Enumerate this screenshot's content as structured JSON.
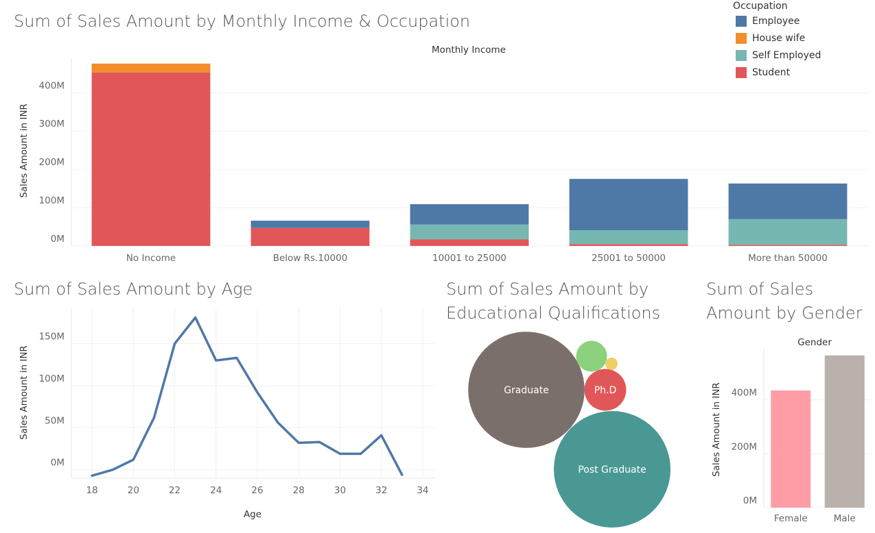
{
  "income_chart": {
    "title": "Sum of Sales Amount by Monthly Income & Occupation",
    "chart_data": {
      "type": "bar",
      "stacked": true,
      "title": "Sum of Sales Amount by Monthly Income & Occupation",
      "column_header": "Monthly Income",
      "ylabel": "Sales Amount in INR",
      "ylim": [
        0,
        490
      ],
      "yticks": [
        "0M",
        "100M",
        "200M",
        "300M",
        "400M"
      ],
      "ytick_values": [
        0,
        100,
        200,
        300,
        400
      ],
      "categories": [
        "No Income",
        "Below Rs.10000",
        "10001 to 25000",
        "25001 to 50000",
        "More than 50000"
      ],
      "series": [
        {
          "name": "Student",
          "color": "#e15759",
          "values": [
            453,
            47,
            17,
            5,
            3
          ]
        },
        {
          "name": "Self Employed",
          "color": "#76b7b2",
          "values": [
            0,
            0,
            39,
            36,
            67
          ]
        },
        {
          "name": "House wife",
          "color": "#f28e2b",
          "values": [
            23,
            0,
            0,
            0,
            0
          ]
        },
        {
          "name": "Employee",
          "color": "#4e79a7",
          "values": [
            0,
            19,
            53,
            134,
            93
          ]
        }
      ],
      "grid": true
    }
  },
  "legend": {
    "title": "Occupation",
    "items": [
      {
        "label": "Employee",
        "color": "#4e79a7"
      },
      {
        "label": "House wife",
        "color": "#f28e2b"
      },
      {
        "label": "Self Employed",
        "color": "#76b7b2"
      },
      {
        "label": "Student",
        "color": "#e15759"
      }
    ]
  },
  "age_chart": {
    "title": "Sum of Sales Amount by Age",
    "chart_data": {
      "type": "line",
      "title": "Sum of Sales Amount by Age",
      "xlabel": "Age",
      "ylabel": "Sales Amount in INR",
      "xlim": [
        17,
        34.6
      ],
      "ylim": [
        -10,
        192
      ],
      "xticks": [
        18,
        20,
        22,
        24,
        26,
        28,
        30,
        32,
        34
      ],
      "yticks": [
        "0M",
        "50M",
        "100M",
        "150M"
      ],
      "ytick_values": [
        0,
        50,
        100,
        150
      ],
      "color": "#4e79a7",
      "x": [
        18,
        19,
        20,
        21,
        22,
        23,
        24,
        25,
        26,
        27,
        28,
        29,
        30,
        31,
        32,
        33
      ],
      "y": [
        -7,
        0,
        12,
        62,
        150,
        181,
        130,
        133,
        92,
        56,
        32,
        33,
        19,
        19,
        41,
        -6
      ],
      "grid": true
    }
  },
  "education_chart": {
    "title": "Sum of Sales Amount by Educational Qualifications",
    "title_lines": [
      "Sum of Sales Amount by",
      "Educational Qualifications"
    ],
    "chart_data": {
      "type": "bubble",
      "title": "Sum of Sales Amount by Educational Qualifications",
      "categories": [
        "Graduate",
        "Post Graduate",
        "Ph.D",
        "",
        ""
      ],
      "colors": [
        "#7b6f6b",
        "#499894",
        "#e15759",
        "#8cd17d",
        "#f1ce63"
      ],
      "relative_size": [
        7183,
        7225,
        930,
        506,
        81
      ]
    }
  },
  "gender_chart": {
    "title": "Sum of Sales Amount by Gender",
    "title_lines": [
      "Sum of Sales",
      "Amount by Gender"
    ],
    "chart_data": {
      "type": "bar",
      "title": "Sum of Sales Amount by Gender",
      "column_header": "Gender",
      "ylabel": "Sales Amount in INR",
      "ylim": [
        0,
        590
      ],
      "yticks": [
        "0M",
        "200M",
        "400M"
      ],
      "ytick_values": [
        0,
        200,
        400
      ],
      "categories": [
        "Female",
        "Male"
      ],
      "colors": [
        "#ff9da7",
        "#bab0ac"
      ],
      "values": [
        435,
        565
      ],
      "grid": true
    }
  }
}
